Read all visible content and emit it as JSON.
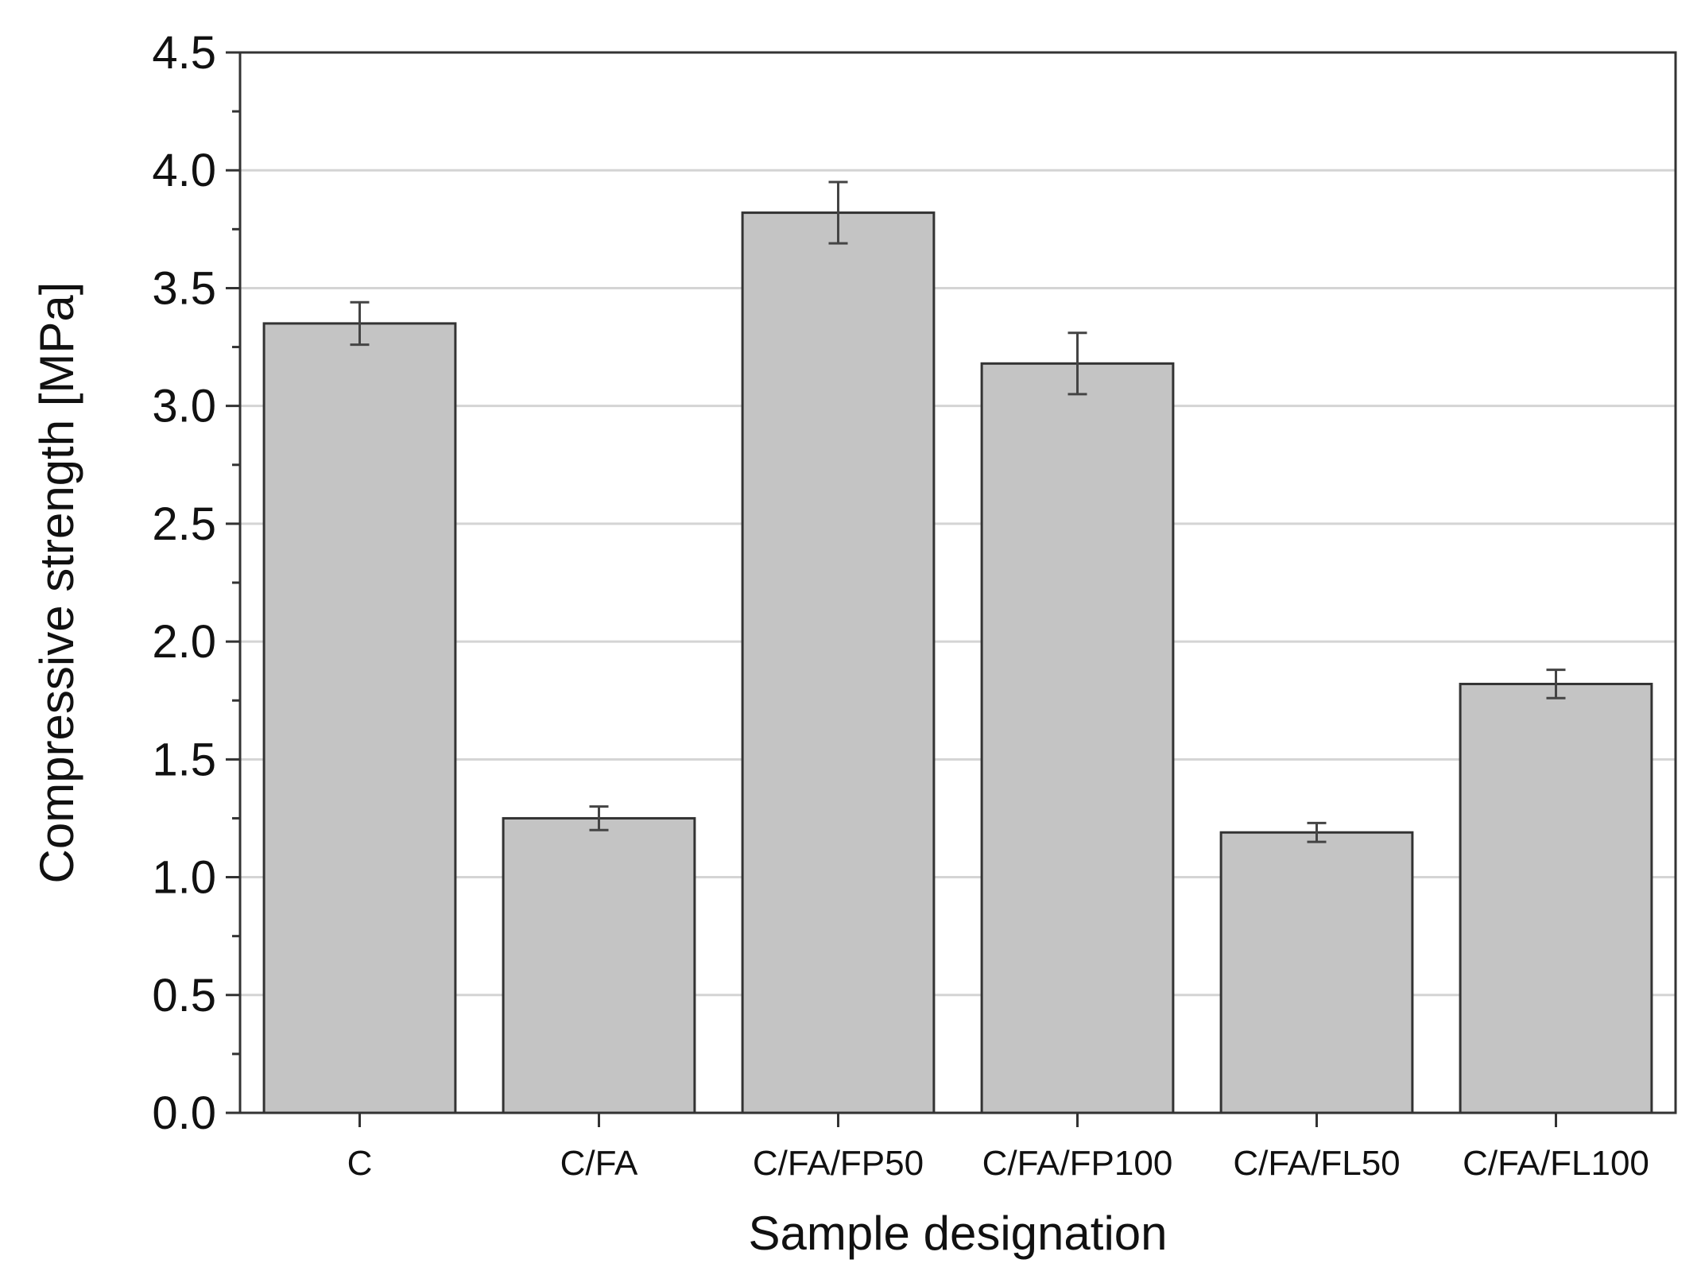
{
  "chart_data": {
    "type": "bar",
    "xlabel": "Sample designation",
    "ylabel": "Compressive strength [MPa]",
    "categories": [
      "C",
      "C/FA",
      "C/FA/FP50",
      "C/FA/FP100",
      "C/FA/FL50",
      "C/FA/FL100"
    ],
    "values": [
      3.35,
      1.25,
      3.82,
      3.18,
      1.19,
      1.82
    ],
    "error": [
      0.09,
      0.05,
      0.13,
      0.13,
      0.04,
      0.06
    ],
    "ylim": [
      0,
      4.5
    ],
    "yticks": [
      "0.0",
      "0.5",
      "1.0",
      "1.5",
      "2.0",
      "2.5",
      "3.0",
      "3.5",
      "4.0",
      "4.5"
    ],
    "grid": true,
    "legend": "none",
    "colors": {
      "bar_fill": "#c4c4c4",
      "bar_stroke": "#333333",
      "grid": "#d4d4d4",
      "axis": "#333333",
      "error_bar": "#444444"
    }
  }
}
